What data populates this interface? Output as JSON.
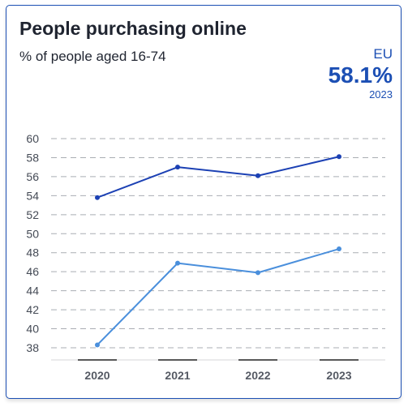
{
  "card": {
    "title": "People purchasing online",
    "subtitle": "% of people aged 16-74"
  },
  "kpi": {
    "label": "EU",
    "value": "58.1%",
    "year": "2023"
  },
  "chart_data": {
    "type": "line",
    "title": "People purchasing online",
    "subtitle": "% of people aged 16-74",
    "xlabel": "",
    "ylabel": "",
    "x": [
      "2020",
      "2021",
      "2022",
      "2023"
    ],
    "ylim": [
      37,
      60
    ],
    "yticks": [
      60,
      58,
      56,
      54,
      52,
      50,
      48,
      46,
      44,
      42,
      40,
      38
    ],
    "grid": true,
    "series": [
      {
        "values": [
          53.8,
          57.0,
          56.1,
          58.1
        ],
        "color": "#1c41b4"
      },
      {
        "values": [
          38.3,
          46.9,
          45.9,
          48.4
        ],
        "color": "#4a8fdc"
      }
    ]
  }
}
